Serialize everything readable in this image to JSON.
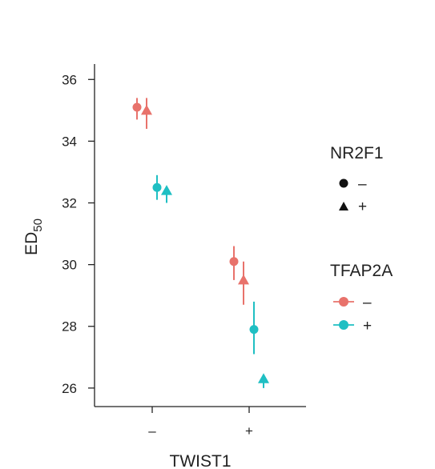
{
  "chart_data": {
    "type": "scatter",
    "title": "",
    "xlabel": "TWIST1",
    "ylabel_main": "ED",
    "ylabel_sub": "50",
    "categories": [
      "–",
      "+"
    ],
    "ylim": [
      25.4,
      36.5
    ],
    "yticks": [
      26,
      28,
      30,
      32,
      34,
      36
    ],
    "grid": false,
    "colors": {
      "TFAP2A_minus": "#E8726B",
      "TFAP2A_plus": "#1FBFC3"
    },
    "points": [
      {
        "twist1": "–",
        "tfap2a": "–",
        "nr2f1": "–",
        "y": 35.1,
        "ymin": 34.7,
        "ymax": 35.4
      },
      {
        "twist1": "–",
        "tfap2a": "–",
        "nr2f1": "+",
        "y": 35.0,
        "ymin": 34.4,
        "ymax": 35.4
      },
      {
        "twist1": "–",
        "tfap2a": "+",
        "nr2f1": "–",
        "y": 32.5,
        "ymin": 32.1,
        "ymax": 32.9
      },
      {
        "twist1": "–",
        "tfap2a": "+",
        "nr2f1": "+",
        "y": 32.4,
        "ymin": 32.0,
        "ymax": 32.5
      },
      {
        "twist1": "+",
        "tfap2a": "–",
        "nr2f1": "–",
        "y": 30.1,
        "ymin": 29.5,
        "ymax": 30.6
      },
      {
        "twist1": "+",
        "tfap2a": "–",
        "nr2f1": "+",
        "y": 29.5,
        "ymin": 28.7,
        "ymax": 30.1
      },
      {
        "twist1": "+",
        "tfap2a": "+",
        "nr2f1": "–",
        "y": 27.9,
        "ymin": 27.1,
        "ymax": 28.8
      },
      {
        "twist1": "+",
        "tfap2a": "+",
        "nr2f1": "+",
        "y": 26.3,
        "ymin": 26.0,
        "ymax": 26.4
      }
    ],
    "legend": {
      "placement": "right",
      "shape_legend": {
        "title": "NR2F1",
        "entries": [
          {
            "label": "–",
            "shape": "circle"
          },
          {
            "label": "+",
            "shape": "triangle"
          }
        ]
      },
      "color_legend": {
        "title": "TFAP2A",
        "entries": [
          {
            "label": "–",
            "color": "#E8726B"
          },
          {
            "label": "+",
            "color": "#1FBFC3"
          }
        ]
      }
    }
  }
}
